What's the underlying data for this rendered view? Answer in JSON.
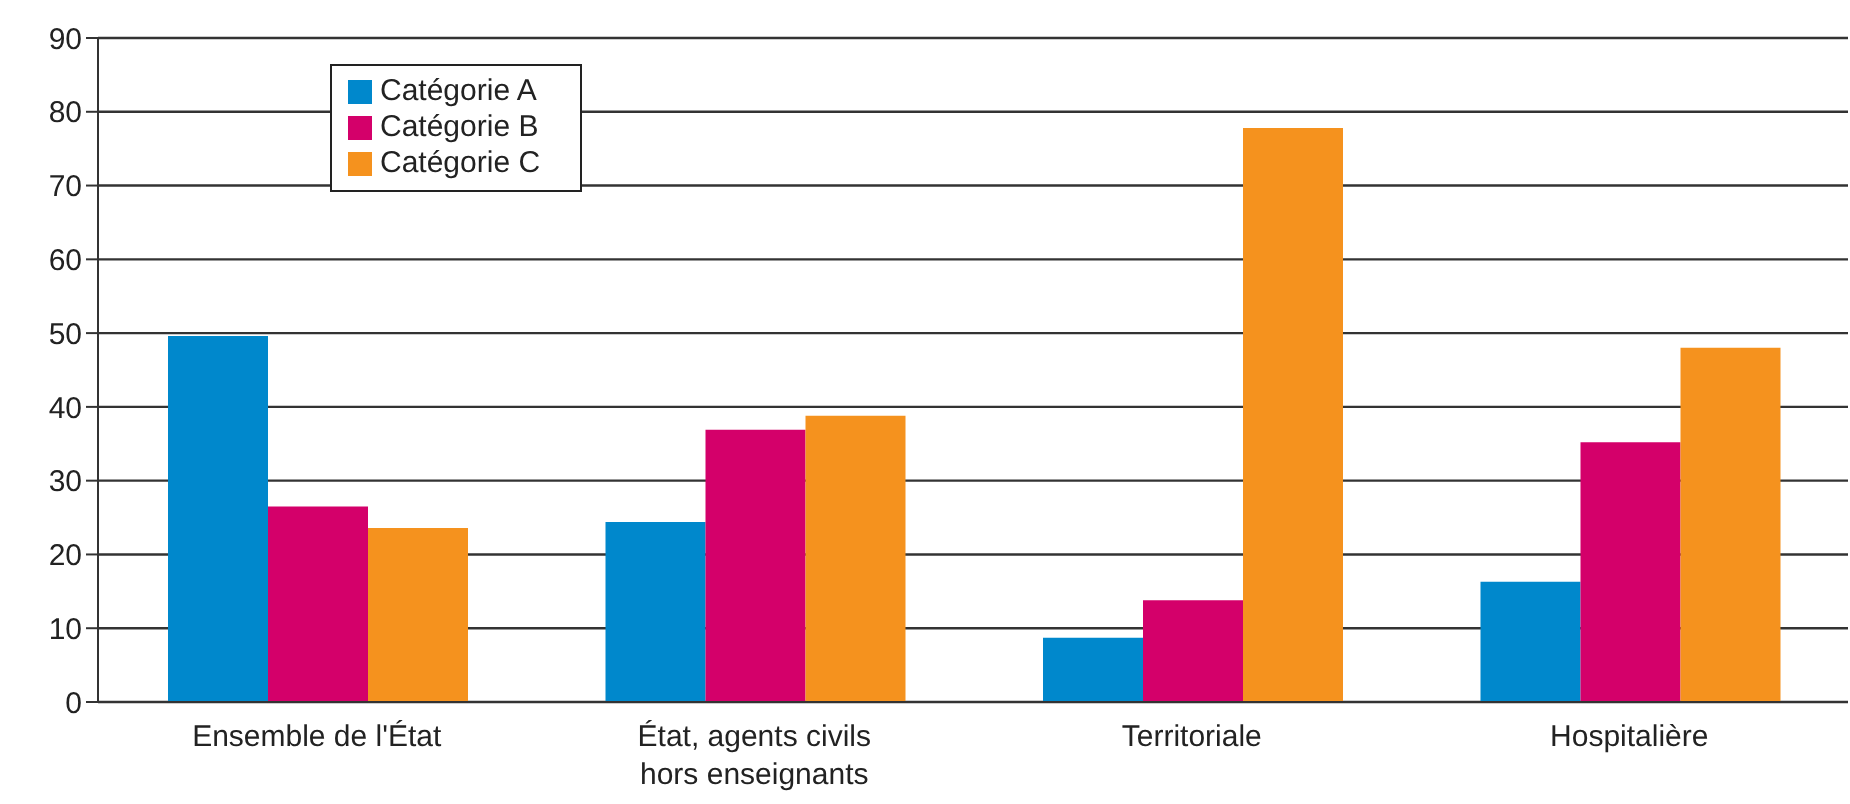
{
  "chart_data": {
    "type": "bar",
    "categories": [
      "Ensemble de l'État",
      "État, agents civils hors enseignants",
      "Territoriale",
      "Hospitalière"
    ],
    "series": [
      {
        "name": "Catégorie A",
        "color": "#0088cc",
        "values": [
          49.6,
          24.4,
          8.7,
          16.3
        ]
      },
      {
        "name": "Catégorie B",
        "color": "#d4006a",
        "values": [
          26.5,
          36.9,
          13.8,
          35.2
        ]
      },
      {
        "name": "Catégorie C",
        "color": "#f5921e",
        "values": [
          23.6,
          38.8,
          77.8,
          48.0
        ]
      }
    ],
    "ylim": [
      0,
      90
    ],
    "yticks": [
      0,
      10,
      20,
      30,
      40,
      50,
      60,
      70,
      80,
      90
    ],
    "grid": "y",
    "legend": "top left"
  }
}
